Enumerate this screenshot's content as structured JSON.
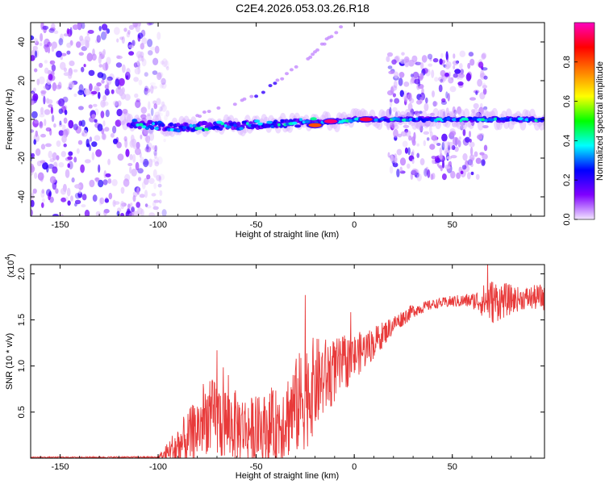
{
  "title": "C2E4.2026.053.03.26.R18",
  "chart_data": [
    {
      "type": "heatmap",
      "xlabel": "Height of straight line (km)",
      "ylabel": "Frequency (Hz)",
      "xlim": [
        -165,
        97
      ],
      "ylim": [
        -50,
        50
      ],
      "xticks": [
        -150,
        -100,
        -50,
        0,
        50
      ],
      "yticks": [
        -40,
        -20,
        0,
        20,
        40
      ],
      "colorbar": {
        "label": "Normalized spectral amplitude",
        "range": [
          0,
          1
        ],
        "ticks": [
          "0.0",
          "0.2",
          "0.4",
          "0.6",
          "0.8"
        ],
        "colors": [
          "#f2e6ff",
          "#8000ff",
          "#0000ff",
          "#00ffff",
          "#00ff00",
          "#ffff00",
          "#ff8000",
          "#ff0000",
          "#ff00c0"
        ]
      },
      "features": {
        "noise_regions_x": [
          [
            -165,
            -95
          ],
          [
            17,
            67
          ]
        ],
        "main_band": [
          [
            -115,
            -2
          ],
          [
            -90,
            -4
          ],
          [
            -60,
            -3
          ],
          [
            -30,
            -2
          ],
          [
            -10,
            -1
          ],
          [
            0,
            0
          ],
          [
            20,
            0
          ],
          [
            97,
            0
          ]
        ],
        "harmonic_line": [
          [
            -80,
            2
          ],
          [
            -60,
            8
          ],
          [
            -45,
            15
          ],
          [
            -25,
            30
          ],
          [
            -5,
            50
          ]
        ],
        "hot_spots": [
          {
            "x": -12,
            "y": -1,
            "amp": 0.95
          },
          {
            "x": 6,
            "y": 0,
            "amp": 0.92
          },
          {
            "x": -20,
            "y": -3,
            "amp": 0.8
          }
        ]
      }
    },
    {
      "type": "line",
      "xlabel": "Height of straight line (km)",
      "ylabel": "SNR (10 * v/v)",
      "y_multiplier": "(x10",
      "y_multiplier_exp": "4",
      "xlim": [
        -165,
        97
      ],
      "ylim": [
        0,
        2.1
      ],
      "xticks": [
        -150,
        -100,
        -50,
        0,
        50
      ],
      "yticks": [
        "0.5",
        "1.0",
        "1.5",
        "2.0"
      ],
      "series": [
        {
          "color": "#e83a3a",
          "trend": [
            [
              -165,
              0.01
            ],
            [
              -100,
              0.01
            ],
            [
              -95,
              0.05
            ],
            [
              -85,
              0.2
            ],
            [
              -75,
              0.45
            ],
            [
              -60,
              0.35
            ],
            [
              -50,
              0.3
            ],
            [
              -40,
              0.35
            ],
            [
              -30,
              0.55
            ],
            [
              -20,
              0.8
            ],
            [
              -10,
              0.95
            ],
            [
              0,
              1.1
            ],
            [
              10,
              1.25
            ],
            [
              20,
              1.45
            ],
            [
              30,
              1.6
            ],
            [
              40,
              1.67
            ],
            [
              50,
              1.7
            ],
            [
              60,
              1.71
            ],
            [
              70,
              1.7
            ],
            [
              80,
              1.72
            ],
            [
              97,
              1.75
            ]
          ],
          "noise_amplitude": [
            [
              -165,
              0.005
            ],
            [
              -100,
              0.01
            ],
            [
              -90,
              0.25
            ],
            [
              -80,
              0.35
            ],
            [
              -70,
              0.45
            ],
            [
              -55,
              0.35
            ],
            [
              -40,
              0.4
            ],
            [
              -25,
              0.6
            ],
            [
              -10,
              0.35
            ],
            [
              0,
              0.25
            ],
            [
              20,
              0.1
            ],
            [
              40,
              0.05
            ],
            [
              60,
              0.08
            ],
            [
              70,
              0.25
            ],
            [
              85,
              0.12
            ],
            [
              97,
              0.15
            ]
          ],
          "peaks": [
            {
              "x": -70,
              "y": 1.17
            },
            {
              "x": -25,
              "y": 1.77
            },
            {
              "x": 68,
              "y": 2.15
            }
          ]
        }
      ]
    }
  ]
}
